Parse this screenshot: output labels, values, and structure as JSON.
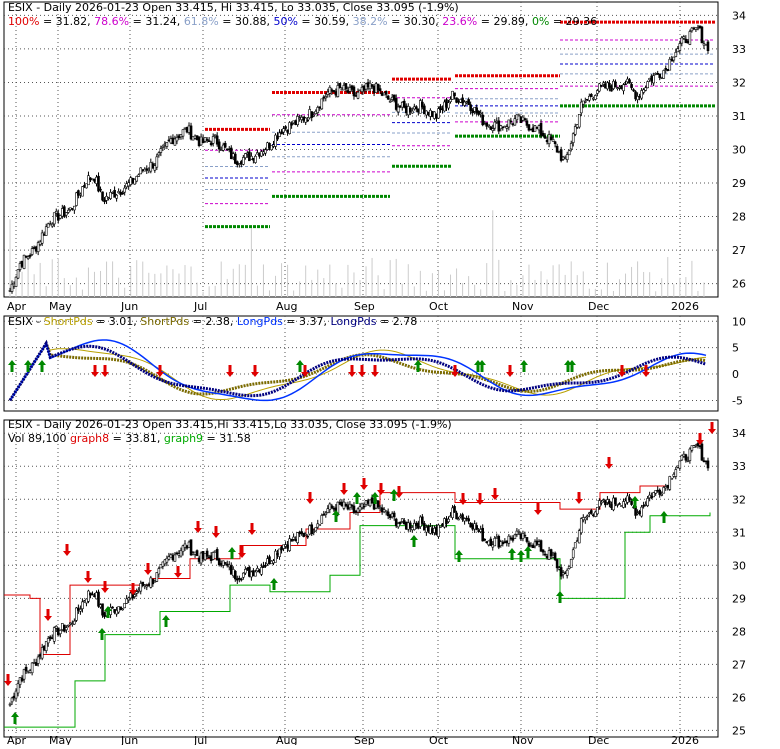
{
  "colors": {
    "border": "#000000",
    "grid": "#555555",
    "up": "#ffffff",
    "down": "#000000",
    "fib_red": "#e00000",
    "fib_magenta": "#cc00cc",
    "fib_blue": "#0000cc",
    "fib_green": "#008800",
    "short1": "#b8a000",
    "short2": "#7a6a00",
    "long1": "#0033ff",
    "long2": "#000080",
    "trail_red": "#dd0000",
    "trail_green": "#00aa00",
    "arrow_red": "#e00000",
    "arrow_green": "#008800",
    "volume": "#cccccc"
  },
  "months": [
    "Apr",
    "May",
    "Jun",
    "Jul",
    "Aug",
    "Sep",
    "Oct",
    "Nov",
    "Dec",
    "2026"
  ],
  "panel1": {
    "title": "ESIX - Daily 2026-01-23 Open 33.415, Hi 33.415, Lo 33.035, Close 33.095 (-1.9%)",
    "fib_items": [
      {
        "label": "100%",
        "value": "= 31.82, ",
        "color": "#e00000"
      },
      {
        "label": "78.6%",
        "value": "= 31.24, ",
        "color": "#cc00cc"
      },
      {
        "label": "61.8%",
        "value": "= 30.88, ",
        "color": "#8aa0c8"
      },
      {
        "label": "50%",
        "value": "= 30.59, ",
        "color": "#0000cc"
      },
      {
        "label": "38.2%",
        "value": "= 30.30, ",
        "color": "#8aa0c8"
      },
      {
        "label": "23.6%",
        "value": "= 29.89, ",
        "color": "#cc00cc"
      },
      {
        "label": "0%",
        "value": "= 29.36",
        "color": "#008800"
      }
    ],
    "yticks": [
      "34",
      "33",
      "32",
      "31",
      "30",
      "29",
      "28",
      "27",
      "26"
    ]
  },
  "panel2": {
    "items": [
      {
        "label": "ESIX - ",
        "color": "#000000"
      },
      {
        "label": "ShortPds",
        "value": " = 3.01, ",
        "color": "#b8a000"
      },
      {
        "label": "ShortPds",
        "value": " = 2.38, ",
        "color": "#7a6a00"
      },
      {
        "label": "LongPds",
        "value": " = 3.37, ",
        "color": "#0033ff"
      },
      {
        "label": "LongPds",
        "value": " = 2.78",
        "color": "#000080"
      }
    ],
    "yticks": [
      "10",
      "5",
      "0",
      "-5"
    ]
  },
  "panel3": {
    "title": "ESIX - Daily 2026-01-23 Open 33.415,Hi 33.415,Lo 33.035, Close 33.095 (-1.9%)",
    "vol_label": "Vol 89,100 ",
    "graph8": "graph8",
    "graph8_value": " = 33.81, ",
    "graph9": "graph9",
    "graph9_value": " = 31.58",
    "yticks": [
      "34",
      "33",
      "32",
      "31",
      "30",
      "29",
      "28",
      "27",
      "26",
      "25"
    ]
  },
  "chart_data": [
    {
      "type": "candlestick",
      "title": "ESIX - Daily 2026-01-23 Open 33.415, Hi 33.415, Lo 33.035, Close 33.095 (-1.9%)",
      "x_range": [
        "Apr",
        "2026"
      ],
      "ylim": [
        25.6,
        34.4
      ],
      "grid": true,
      "fib_levels": {
        "100%": 31.82,
        "78.6%": 31.24,
        "61.8%": 30.88,
        "50%": 30.59,
        "38.2%": 30.3,
        "23.6%": 29.89,
        "0%": 29.36
      },
      "close_path": [
        [
          0,
          25.8
        ],
        [
          5,
          26.6
        ],
        [
          12,
          27.0
        ],
        [
          20,
          27.9
        ],
        [
          30,
          28.2
        ],
        [
          38,
          29.1
        ],
        [
          42,
          29.2
        ],
        [
          46,
          28.5
        ],
        [
          55,
          28.8
        ],
        [
          60,
          29.0
        ],
        [
          66,
          29.4
        ],
        [
          72,
          29.6
        ],
        [
          80,
          30.3
        ],
        [
          88,
          30.6
        ],
        [
          95,
          30.2
        ],
        [
          102,
          30.3
        ],
        [
          112,
          29.7
        ],
        [
          120,
          29.8
        ],
        [
          128,
          30.1
        ],
        [
          135,
          30.6
        ],
        [
          142,
          30.8
        ],
        [
          150,
          31.1
        ],
        [
          158,
          31.7
        ],
        [
          165,
          31.8
        ],
        [
          172,
          31.6
        ],
        [
          180,
          31.9
        ],
        [
          188,
          31.5
        ],
        [
          196,
          31.2
        ],
        [
          204,
          31.3
        ],
        [
          212,
          31.0
        ],
        [
          220,
          31.6
        ],
        [
          228,
          31.4
        ],
        [
          236,
          30.8
        ],
        [
          244,
          30.7
        ],
        [
          252,
          30.9
        ],
        [
          262,
          30.6
        ],
        [
          270,
          30.2
        ],
        [
          276,
          29.6
        ],
        [
          284,
          31.3
        ],
        [
          292,
          31.8
        ],
        [
          300,
          31.9
        ],
        [
          306,
          32.0
        ],
        [
          312,
          31.6
        ],
        [
          318,
          32.1
        ],
        [
          326,
          32.4
        ],
        [
          330,
          32.9
        ],
        [
          336,
          33.3
        ],
        [
          342,
          33.6
        ],
        [
          346,
          33.1
        ]
      ]
    },
    {
      "type": "line",
      "title": "ESIX - ShortPds = 3.01, ShortPds = 2.38, LongPds = 3.37, LongPds = 2.78",
      "ylim": [
        -7,
        11
      ],
      "series": [
        {
          "name": "ShortPds",
          "last": 3.01
        },
        {
          "name": "ShortPds",
          "last": 2.38
        },
        {
          "name": "LongPds",
          "last": 3.37
        },
        {
          "name": "LongPds",
          "last": 2.78
        }
      ]
    },
    {
      "type": "candlestick",
      "title": "ESIX - Daily 2026-01-23 Open 33.415,Hi 33.415,Lo 33.035, Close 33.095 (-1.9%)",
      "ylim": [
        24.8,
        34.4
      ],
      "series": [
        {
          "name": "graph8",
          "last": 33.81
        },
        {
          "name": "graph9",
          "last": 31.58
        }
      ],
      "volume": 89100
    }
  ]
}
